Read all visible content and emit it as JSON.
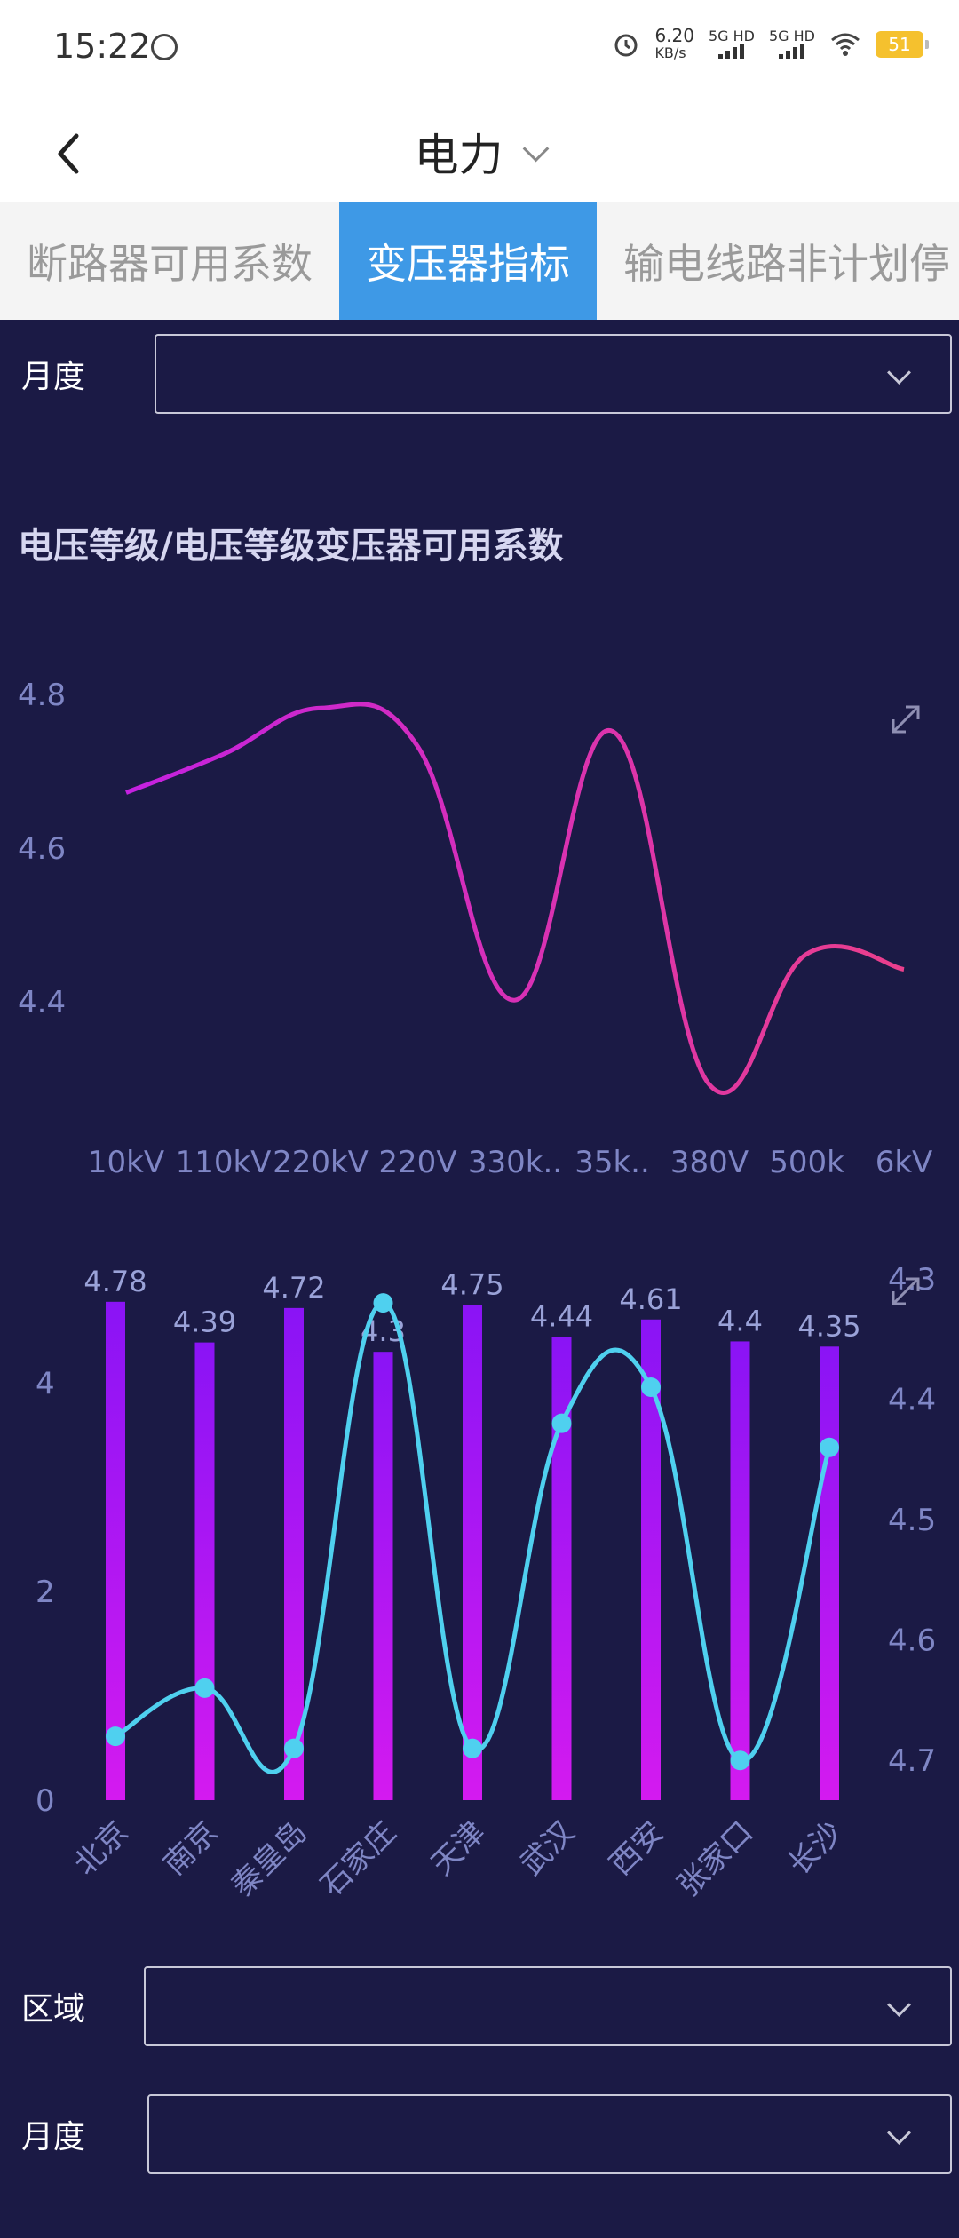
{
  "status": {
    "time": "15:22",
    "net_speed_value": "6.20",
    "net_speed_unit": "KB/s",
    "sim1": "5G HD",
    "sim2": "5G HD",
    "battery": "51"
  },
  "header": {
    "title": "电力"
  },
  "tabs": [
    {
      "label": "断路器可用系数",
      "active": false
    },
    {
      "label": "变压器指标",
      "active": true
    },
    {
      "label": "输电线路非计划停",
      "active": false
    }
  ],
  "filter_top": {
    "label": "月度"
  },
  "chart1_title": "电压等级/电压等级变压器可用系数",
  "filter_bottom": {
    "region_label": "区域",
    "month_label": "月度"
  },
  "chart_data": [
    {
      "type": "line",
      "x": [
        "10kV",
        "110kV",
        "220kV",
        "220V",
        "330k..",
        "35k..",
        "380V",
        "500k",
        "6kV"
      ],
      "y_ticks": [
        "4.8",
        "4.6",
        "4.4"
      ],
      "values": [
        4.67,
        4.72,
        4.78,
        4.73,
        4.4,
        4.75,
        4.29,
        4.46,
        4.44
      ],
      "ylim": [
        4.28,
        4.8
      ],
      "color_start": "#c421e0",
      "color_end": "#ea3f8c"
    },
    {
      "type": "bar",
      "categories": [
        "北京",
        "南京",
        "秦皇岛",
        "石家庄",
        "天津",
        "武汉",
        "西安",
        "张家口",
        "长沙"
      ],
      "values": [
        4.78,
        4.39,
        4.72,
        4.3,
        4.75,
        4.44,
        4.61,
        4.4,
        4.35
      ],
      "value_labels": [
        "4.78",
        "4.39",
        "4.72",
        "4.3",
        "4.75",
        "4.44",
        "4.61",
        "4.4",
        "4.35"
      ],
      "y_left_ticks": [
        "4",
        "2",
        "0"
      ],
      "ylim_left": [
        0,
        5
      ],
      "bar_color_top": "#8a14f5",
      "bar_color_bottom": "#d41af0",
      "line": {
        "values": [
          4.68,
          4.64,
          4.69,
          4.32,
          4.69,
          4.42,
          4.39,
          4.7,
          4.44
        ],
        "y_right_ticks": [
          "4.3",
          "4.4",
          "4.5",
          "4.6",
          "4.7"
        ],
        "ylim_right_top": 4.3,
        "ylim_right_bottom": 4.75,
        "color": "#4fd0ef"
      }
    }
  ]
}
